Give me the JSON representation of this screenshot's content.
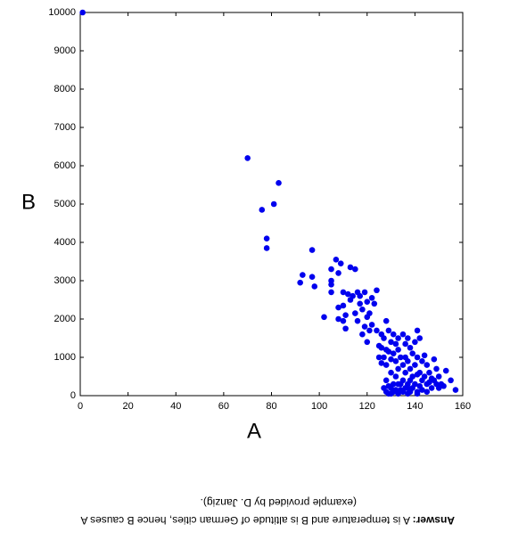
{
  "chart_data": {
    "type": "scatter",
    "xlabel": "A",
    "ylabel": "B",
    "color": "#0000ee",
    "xlim": [
      0,
      160
    ],
    "ylim": [
      0,
      10000
    ],
    "xticks": [
      0,
      20,
      40,
      60,
      80,
      100,
      120,
      140,
      160
    ],
    "yticks": [
      0,
      1000,
      2000,
      3000,
      4000,
      5000,
      6000,
      7000,
      8000,
      9000,
      10000
    ],
    "grid": false,
    "x": [
      1,
      70,
      76,
      81,
      83,
      78,
      78,
      97,
      92,
      93,
      97,
      98,
      102,
      105,
      105,
      105,
      105,
      107,
      108,
      108,
      108,
      109,
      110,
      110,
      110,
      111,
      111,
      112,
      113,
      113,
      114,
      115,
      115,
      116,
      116,
      117,
      117,
      118,
      118,
      119,
      119,
      120,
      120,
      120,
      121,
      121,
      122,
      122,
      123,
      124,
      124,
      125,
      125,
      126,
      126,
      126,
      127,
      127,
      128,
      128,
      128,
      128,
      128,
      129,
      129,
      129,
      130,
      130,
      130,
      130,
      130,
      131,
      131,
      131,
      131,
      132,
      132,
      132,
      132,
      133,
      133,
      133,
      133,
      134,
      134,
      135,
      135,
      135,
      135,
      136,
      136,
      136,
      136,
      137,
      137,
      137,
      137,
      138,
      138,
      138,
      138,
      139,
      139,
      139,
      140,
      140,
      140,
      141,
      141,
      141,
      141,
      142,
      142,
      142,
      143,
      143,
      143,
      144,
      144,
      145,
      145,
      146,
      146,
      147,
      147,
      148,
      148,
      149,
      149,
      150,
      150,
      151,
      152,
      153,
      155,
      157,
      127,
      129,
      134,
      141,
      145,
      133,
      137
    ],
    "values": [
      10000,
      6200,
      4850,
      5000,
      5550,
      4100,
      3850,
      3800,
      2950,
      3150,
      3100,
      2850,
      2050,
      3300,
      3000,
      2900,
      2700,
      3550,
      3200,
      2300,
      2000,
      3450,
      2700,
      2350,
      1950,
      1750,
      2100,
      2650,
      3350,
      2500,
      2600,
      3300,
      2150,
      2700,
      1950,
      2600,
      2400,
      2250,
      1600,
      2700,
      1800,
      2450,
      2050,
      1400,
      2150,
      1700,
      2550,
      1850,
      2400,
      2750,
      1700,
      1300,
      1000,
      1600,
      1250,
      850,
      1500,
      1000,
      1950,
      1200,
      800,
      400,
      100,
      1700,
      1150,
      250,
      1400,
      950,
      600,
      200,
      50,
      1600,
      1100,
      300,
      100,
      1350,
      900,
      500,
      150,
      1500,
      1200,
      700,
      50,
      1000,
      300,
      1600,
      800,
      400,
      100,
      1350,
      1000,
      600,
      200,
      1500,
      900,
      300,
      50,
      1250,
      700,
      400,
      100,
      1100,
      500,
      200,
      1400,
      800,
      300,
      1700,
      1000,
      550,
      100,
      1500,
      600,
      250,
      900,
      400,
      150,
      1050,
      500,
      800,
      300,
      600,
      350,
      450,
      200,
      950,
      400,
      700,
      300,
      500,
      200,
      300,
      250,
      650,
      400,
      150,
      200,
      50,
      150,
      50,
      100,
      300,
      200
    ]
  },
  "caption": {
    "answer_label": "Answer:",
    "answer_text": "A is temperature and B is altitude of German cities, hence B causes A",
    "credit": "(example provided by D. Janzig)."
  }
}
